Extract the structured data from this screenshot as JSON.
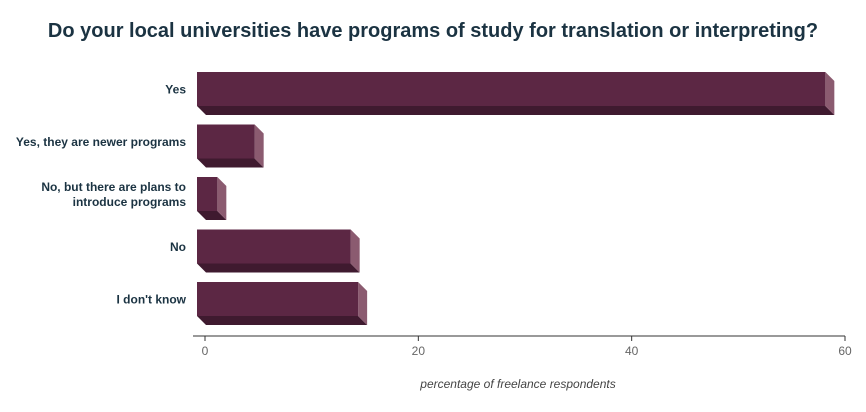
{
  "chart_data": {
    "type": "bar",
    "orientation": "horizontal",
    "title": "Do your local universities have programs of study for translation or interpreting?",
    "categories": [
      [
        "Yes"
      ],
      [
        "Yes, they are newer programs"
      ],
      [
        "No, but there are plans to",
        "introduce programs"
      ],
      [
        "No"
      ],
      [
        "I don't know"
      ]
    ],
    "values": [
      59.0,
      5.5,
      2.0,
      14.5,
      15.2
    ],
    "xlabel": "percentage of freelance respondents",
    "ylabel": "",
    "xlim": [
      0,
      60
    ],
    "xticks": [
      0,
      20,
      40,
      60
    ],
    "grid": false,
    "colors": {
      "bar_front": "#5c2744",
      "bar_side": "#8b5b70",
      "bar_bottom": "#3f1a2f",
      "axis": "#333333"
    }
  }
}
